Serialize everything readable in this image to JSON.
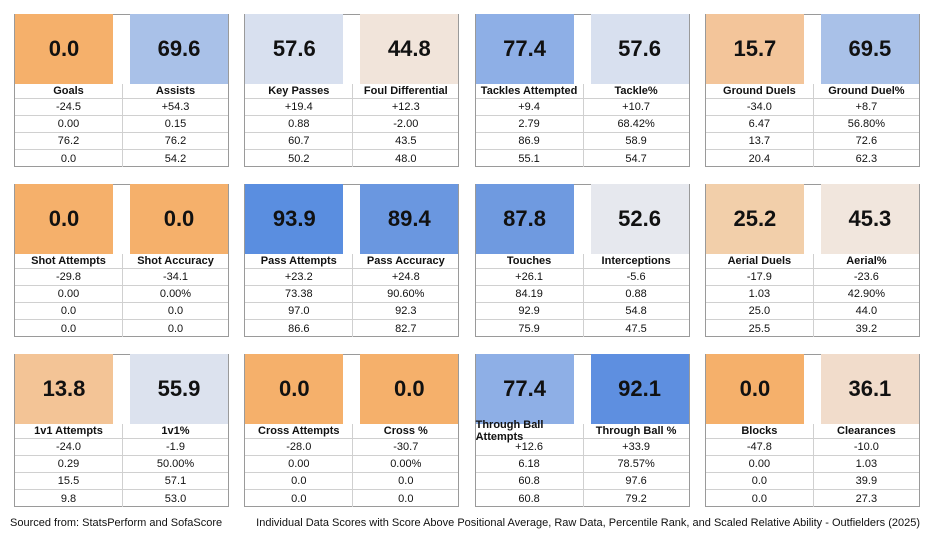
{
  "panels": [
    {
      "metrics": [
        {
          "name": "Goals",
          "score": "0.0",
          "color": "#f5b06b",
          "rows": [
            "-24.5",
            "0.00",
            "76.2",
            "0.0"
          ]
        },
        {
          "name": "Assists",
          "score": "69.6",
          "color": "#a9c1e8",
          "rows": [
            "+54.3",
            "0.15",
            "76.2",
            "54.2"
          ]
        }
      ]
    },
    {
      "metrics": [
        {
          "name": "Key Passes",
          "score": "57.6",
          "color": "#d8e0ef",
          "rows": [
            "+19.4",
            "0.88",
            "60.7",
            "50.2"
          ]
        },
        {
          "name": "Foul Differential",
          "score": "44.8",
          "color": "#f1e4da",
          "rows": [
            "+12.3",
            "-2.00",
            "43.5",
            "48.0"
          ]
        }
      ]
    },
    {
      "metrics": [
        {
          "name": "Tackles Attempted",
          "score": "77.4",
          "color": "#8eafe6",
          "rows": [
            "+9.4",
            "2.79",
            "86.9",
            "55.1"
          ]
        },
        {
          "name": "Tackle%",
          "score": "57.6",
          "color": "#d8e0ef",
          "rows": [
            "+10.7",
            "68.42%",
            "58.9",
            "54.7"
          ]
        }
      ]
    },
    {
      "metrics": [
        {
          "name": "Ground Duels",
          "score": "15.7",
          "color": "#f3c59a",
          "rows": [
            "-34.0",
            "6.47",
            "13.7",
            "20.4"
          ]
        },
        {
          "name": "Ground Duel%",
          "score": "69.5",
          "color": "#a9c1e8",
          "rows": [
            "+8.7",
            "56.80%",
            "72.6",
            "62.3"
          ]
        }
      ]
    },
    {
      "metrics": [
        {
          "name": "Shot Attempts",
          "score": "0.0",
          "color": "#f5b06b",
          "rows": [
            "-29.8",
            "0.00",
            "0.0",
            "0.0"
          ]
        },
        {
          "name": "Shot Accuracy",
          "score": "0.0",
          "color": "#f5b06b",
          "rows": [
            "-34.1",
            "0.00%",
            "0.0",
            "0.0"
          ]
        }
      ]
    },
    {
      "metrics": [
        {
          "name": "Pass Attempts",
          "score": "93.9",
          "color": "#5a8ee0",
          "rows": [
            "+23.2",
            "73.38",
            "97.0",
            "86.6"
          ]
        },
        {
          "name": "Pass Accuracy",
          "score": "89.4",
          "color": "#6a97e0",
          "rows": [
            "+24.8",
            "90.60%",
            "92.3",
            "82.7"
          ]
        }
      ]
    },
    {
      "metrics": [
        {
          "name": "Touches",
          "score": "87.8",
          "color": "#6f9ae0",
          "rows": [
            "+26.1",
            "84.19",
            "92.9",
            "75.9"
          ]
        },
        {
          "name": "Interceptions",
          "score": "52.6",
          "color": "#e6e8ee",
          "rows": [
            "-5.6",
            "0.88",
            "54.8",
            "47.5"
          ]
        }
      ]
    },
    {
      "metrics": [
        {
          "name": "Aerial Duels",
          "score": "25.2",
          "color": "#f2cfaa",
          "rows": [
            "-17.9",
            "1.03",
            "25.0",
            "25.5"
          ]
        },
        {
          "name": "Aerial%",
          "score": "45.3",
          "color": "#f1e6dd",
          "rows": [
            "-23.6",
            "42.90%",
            "44.0",
            "39.2"
          ]
        }
      ]
    },
    {
      "metrics": [
        {
          "name": "1v1 Attempts",
          "score": "13.8",
          "color": "#f3c496",
          "rows": [
            "-24.0",
            "0.29",
            "15.5",
            "9.8"
          ]
        },
        {
          "name": "1v1%",
          "score": "55.9",
          "color": "#dce2ee",
          "rows": [
            "-1.9",
            "50.00%",
            "57.1",
            "53.0"
          ]
        }
      ]
    },
    {
      "metrics": [
        {
          "name": "Cross Attempts",
          "score": "0.0",
          "color": "#f5b06b",
          "rows": [
            "-28.0",
            "0.00",
            "0.0",
            "0.0"
          ]
        },
        {
          "name": "Cross %",
          "score": "0.0",
          "color": "#f5b06b",
          "rows": [
            "-30.7",
            "0.00%",
            "0.0",
            "0.0"
          ]
        }
      ]
    },
    {
      "metrics": [
        {
          "name": "Through Ball Attempts",
          "score": "77.4",
          "color": "#8eafe6",
          "rows": [
            "+12.6",
            "6.18",
            "60.8",
            "60.8"
          ]
        },
        {
          "name": "Through Ball %",
          "score": "92.1",
          "color": "#5e8fe0",
          "rows": [
            "+33.9",
            "78.57%",
            "97.6",
            "79.2"
          ]
        }
      ]
    },
    {
      "metrics": [
        {
          "name": "Blocks",
          "score": "0.0",
          "color": "#f5b06b",
          "rows": [
            "-47.8",
            "0.00",
            "0.0",
            "0.0"
          ]
        },
        {
          "name": "Clearances",
          "score": "36.1",
          "color": "#f1dccb",
          "rows": [
            "-10.0",
            "1.03",
            "39.9",
            "27.3"
          ]
        }
      ]
    }
  ],
  "footer": {
    "source": "Sourced from: StatsPerform and SofaScore",
    "description": "Individual Data Scores with Score Above Positional Average, Raw Data, Percentile Rank, and Scaled Relative Ability - Outfielders (2025)"
  }
}
